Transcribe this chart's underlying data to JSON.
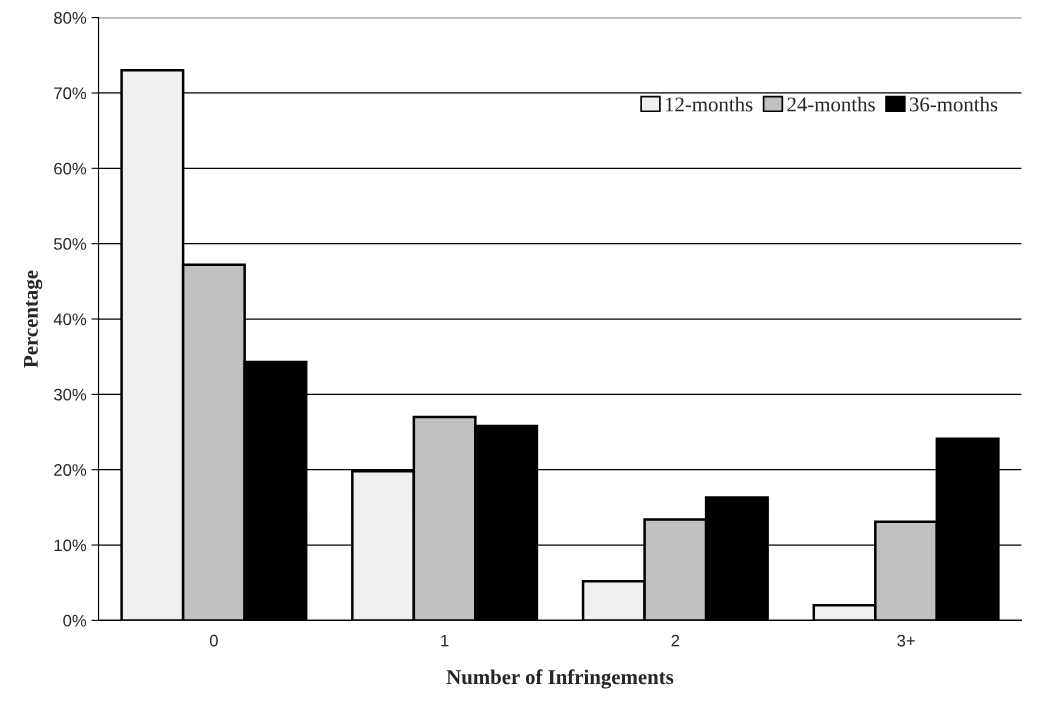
{
  "chart_data": {
    "type": "bar",
    "xlabel": "Number of Infringements",
    "ylabel": "Percentage",
    "categories": [
      "0",
      "1",
      "2",
      "3+"
    ],
    "series": [
      {
        "name": "12-months",
        "color": "#f0f0f0",
        "values": [
          73,
          19.8,
          5.2,
          2
        ]
      },
      {
        "name": "24-months",
        "color": "#c0c0c0",
        "values": [
          47.2,
          27,
          13.4,
          13.1
        ]
      },
      {
        "name": "36-months",
        "color": "#000000",
        "values": [
          34.3,
          25.8,
          16.3,
          24.1
        ]
      }
    ],
    "ylim": [
      0,
      80
    ],
    "yticks": [
      {
        "value": 0,
        "label": "0%"
      },
      {
        "value": 10,
        "label": "10%"
      },
      {
        "value": 20,
        "label": "20%"
      },
      {
        "value": 30,
        "label": "30%"
      },
      {
        "value": 40,
        "label": "40%"
      },
      {
        "value": 50,
        "label": "50%"
      },
      {
        "value": 60,
        "label": "60%"
      },
      {
        "value": 70,
        "label": "70%"
      },
      {
        "value": 80,
        "label": "80%"
      }
    ],
    "grid": "y",
    "legend": "top right"
  }
}
